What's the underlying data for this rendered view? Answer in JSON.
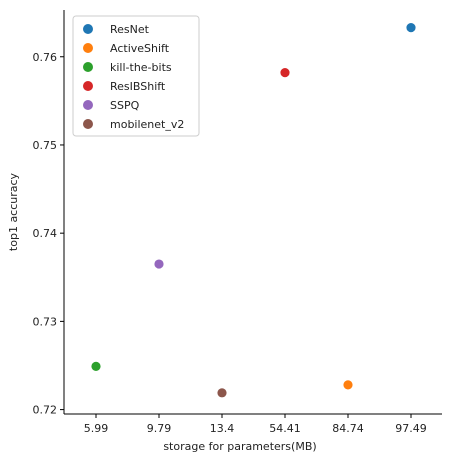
{
  "chart_data": {
    "type": "scatter",
    "title": "",
    "xlabel": "storage for parameters(MB)",
    "ylabel": "top1 accuracy",
    "x_ticks": [
      "5.99",
      "9.79",
      "13.4",
      "54.41",
      "84.74",
      "97.49"
    ],
    "y_ticks": [
      "0.72",
      "0.73",
      "0.74",
      "0.75",
      "0.76"
    ],
    "ylim": [
      0.7195,
      0.7653
    ],
    "grid": false,
    "legend_position": "top-left",
    "series": [
      {
        "name": "ResNet",
        "color": "#1f77b4",
        "x": "97.49",
        "y": 0.7633
      },
      {
        "name": "ActiveShift",
        "color": "#ff7f0e",
        "x": "84.74",
        "y": 0.7228
      },
      {
        "name": "kill-the-bits",
        "color": "#2ca02c",
        "x": "5.99",
        "y": 0.7249
      },
      {
        "name": "ResIBShift",
        "color": "#d62728",
        "x": "54.41",
        "y": 0.7582
      },
      {
        "name": "SSPQ",
        "color": "#9467bd",
        "x": "9.79",
        "y": 0.7365
      },
      {
        "name": "mobilenet_v2",
        "color": "#8c564b",
        "x": "13.4",
        "y": 0.7219
      }
    ]
  }
}
